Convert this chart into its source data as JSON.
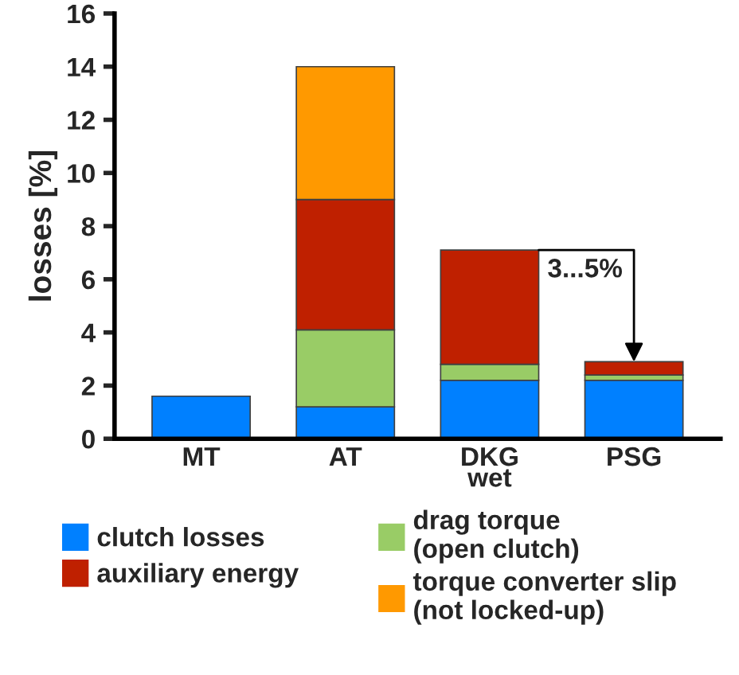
{
  "chart_data": {
    "type": "bar",
    "stacked": true,
    "ylabel": "losses [%]",
    "categories": [
      "MT",
      "AT",
      "DKG\nwet",
      "PSG"
    ],
    "series": [
      {
        "name": "clutch losses",
        "color": "#0080ff",
        "values": [
          1.6,
          1.2,
          2.2,
          2.2
        ]
      },
      {
        "name": "drag torque\n(open clutch)",
        "color": "#99cc66",
        "values": [
          null,
          2.9,
          0.6,
          0.2
        ]
      },
      {
        "name": "auxiliary energy",
        "color": "#bf2000",
        "values": [
          null,
          4.9,
          4.3,
          0.5
        ]
      },
      {
        "name": "torque converter slip\n(not locked-up)",
        "color": "#ff9900",
        "values": [
          null,
          5.0,
          null,
          null
        ]
      }
    ],
    "ylim": [
      0,
      16
    ],
    "yticks": [
      0,
      2,
      4,
      6,
      8,
      10,
      12,
      14,
      16
    ],
    "grid": false,
    "legend": "bottom",
    "annotations": [
      {
        "text": "3...5%",
        "x": "PSG",
        "y": 2.9
      }
    ]
  }
}
